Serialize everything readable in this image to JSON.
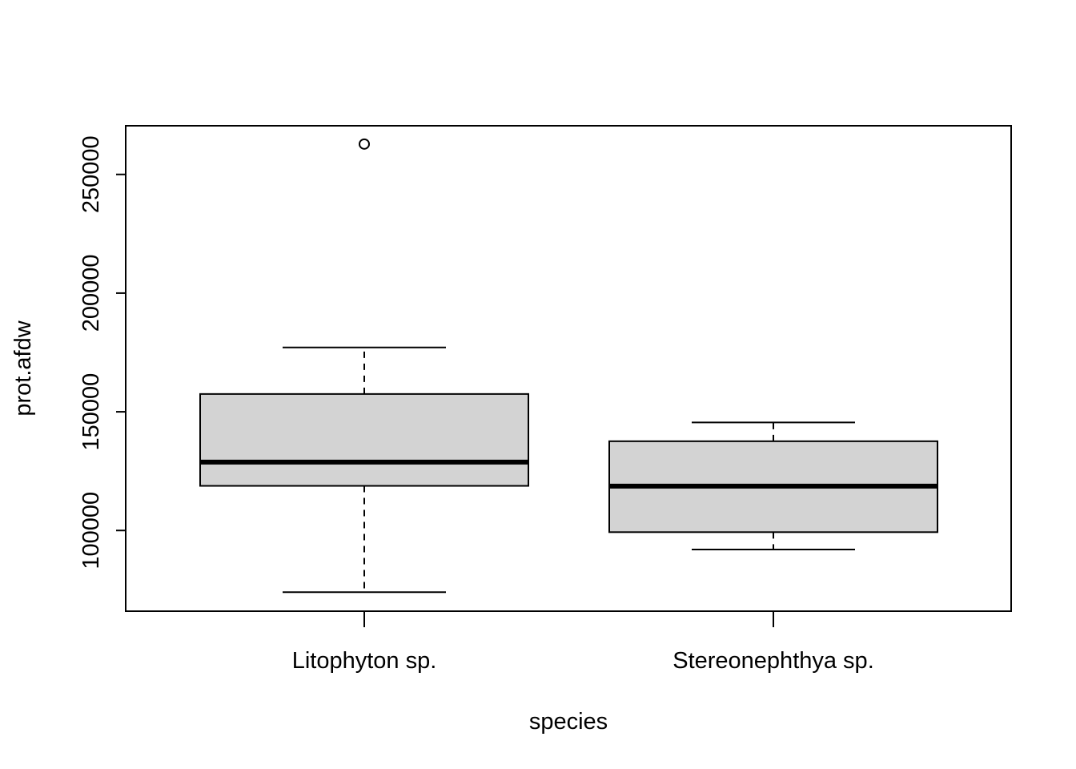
{
  "chart_data": {
    "type": "boxplot",
    "xlabel": "species",
    "ylabel": "prot.afdw",
    "title": "",
    "yticks": [
      100000,
      150000,
      200000,
      250000
    ],
    "ytick_labels": [
      "100000",
      "150000",
      "200000",
      "250000"
    ],
    "ylim": [
      66000,
      270500
    ],
    "categories": [
      "Litophyton sp.",
      "Stereonephthya sp."
    ],
    "boxes": [
      {
        "category": "Litophyton sp.",
        "lower_whisker": 74000,
        "q1": 118800,
        "median": 128800,
        "q3": 157500,
        "upper_whisker": 177100,
        "outliers": [
          262800
        ]
      },
      {
        "category": "Stereonephthya sp.",
        "lower_whisker": 92000,
        "q1": 99300,
        "median": 118700,
        "q3": 137600,
        "upper_whisker": 145500,
        "outliers": []
      }
    ],
    "box_fill": "#d3d3d3",
    "line_color": "#000000",
    "grid": false,
    "legend": "none"
  }
}
